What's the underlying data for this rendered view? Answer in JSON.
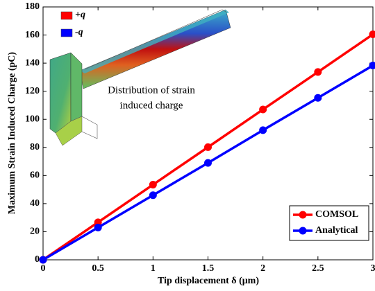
{
  "chart_data": {
    "type": "line",
    "x_label": "Tip displacement δ (μm)",
    "y_label": "Maximum Strain Induced Charge (pC)",
    "x": [
      0,
      0.5,
      1,
      1.5,
      2,
      2.5,
      3
    ],
    "series": [
      {
        "name": "COMSOL",
        "color": "#ff0000",
        "values": [
          0,
          26.7,
          53.5,
          80.2,
          107,
          133.7,
          160.5
        ]
      },
      {
        "name": "Analytical",
        "color": "#0000ff",
        "values": [
          0,
          23,
          46,
          69,
          92.3,
          115.3,
          138.3
        ]
      }
    ],
    "xlim": [
      0,
      3
    ],
    "xticks": [
      0,
      0.5,
      1,
      1.5,
      2,
      2.5,
      3
    ],
    "ylim": [
      0,
      180
    ],
    "yticks": [
      0,
      20,
      40,
      60,
      80,
      100,
      120,
      140,
      160,
      180
    ],
    "legend": "lower right",
    "inset_legend": [
      {
        "name": "+q",
        "color": "#ff0000"
      },
      {
        "name": "-q",
        "color": "#0000ff"
      }
    ],
    "inset_caption": [
      "Distribution of strain",
      "induced charge"
    ]
  }
}
